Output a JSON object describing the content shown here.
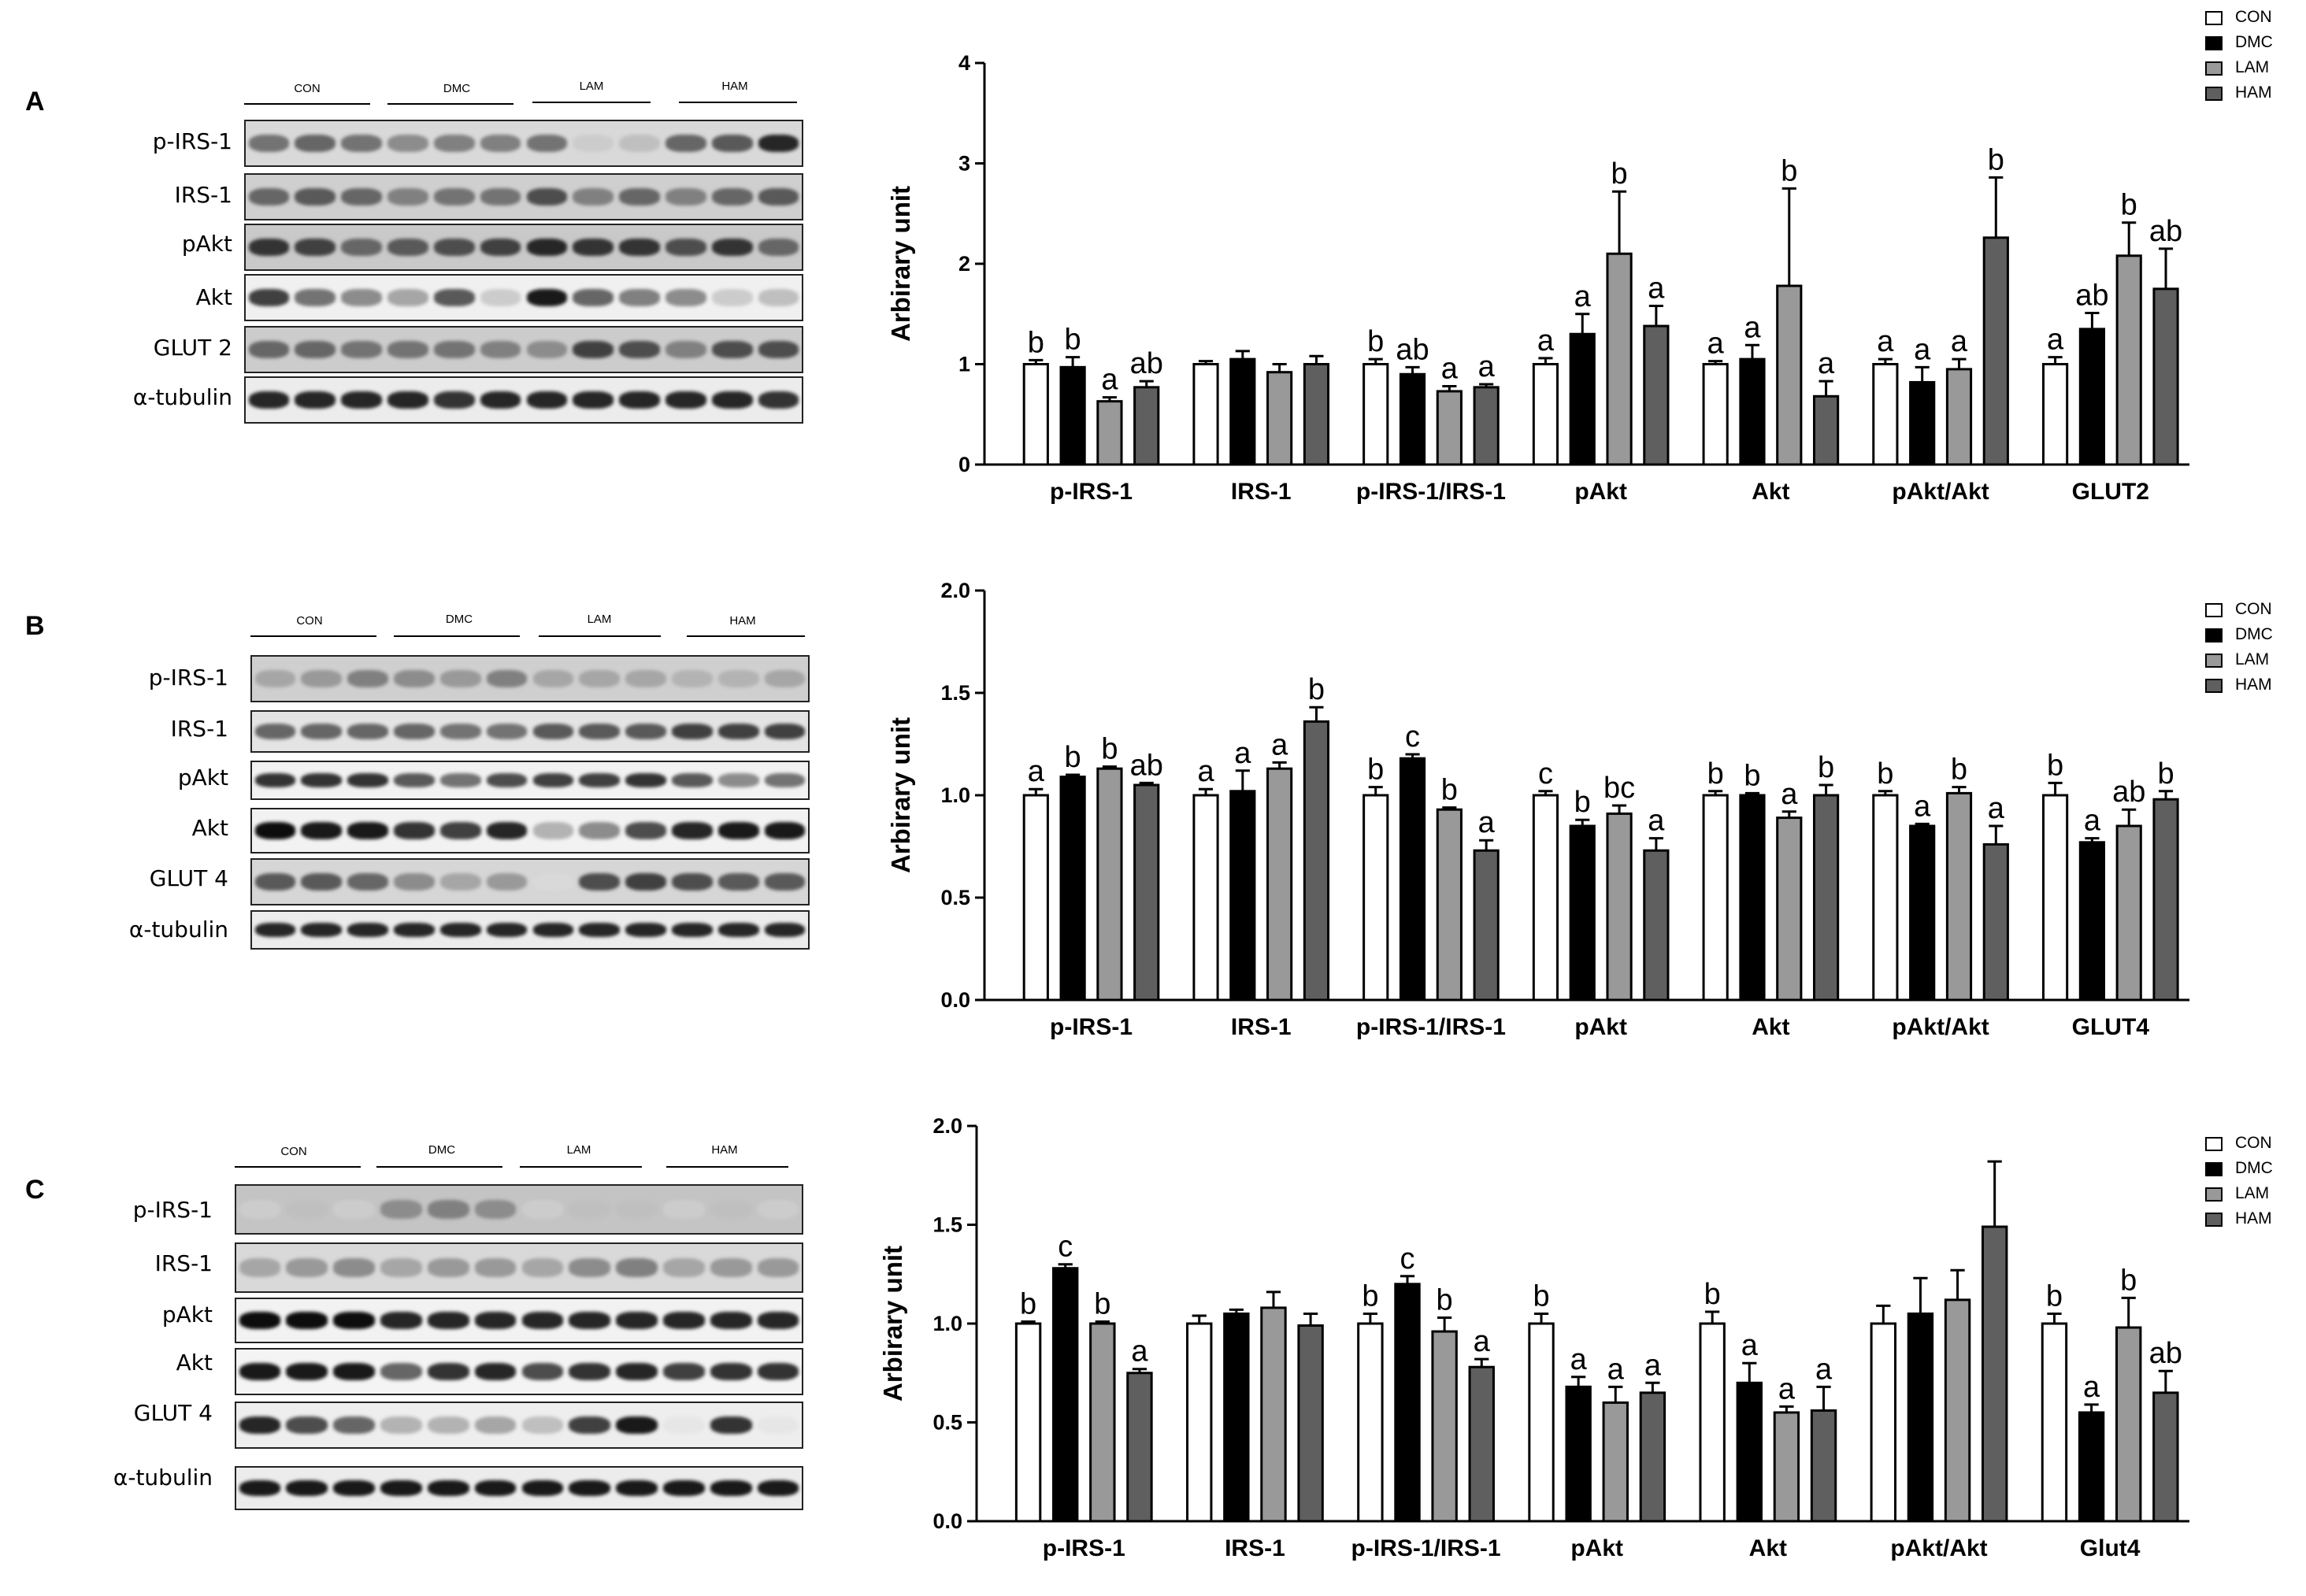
{
  "figure": {
    "panels": [
      {
        "letter": "A",
        "groups": [
          "CON",
          "DMC",
          "LAM",
          "HAM"
        ],
        "bands": [
          "p-IRS-1",
          "IRS-1",
          "pAkt",
          "Akt",
          "GLUT 2",
          "α-tubulin"
        ],
        "legend": [
          "CON",
          "DMC",
          "LAM",
          "HAM"
        ]
      },
      {
        "letter": "B",
        "groups": [
          "CON",
          "DMC",
          "LAM",
          "HAM"
        ],
        "bands": [
          "p-IRS-1",
          "IRS-1",
          "pAkt",
          "Akt",
          "GLUT 4",
          "α-tubulin"
        ],
        "legend": [
          "CON",
          "DMC",
          "LAM",
          "HAM"
        ]
      },
      {
        "letter": "C",
        "groups": [
          "CON",
          "DMC",
          "LAM",
          "HAM"
        ],
        "bands": [
          "p-IRS-1",
          "IRS-1",
          "pAkt",
          "Akt",
          "GLUT 4",
          "α-tubulin"
        ],
        "legend": [
          "CON",
          "DMC",
          "LAM",
          "HAM"
        ]
      }
    ]
  },
  "colors": {
    "CON": "#ffffff",
    "DMC": "#000000",
    "LAM": "#999999",
    "HAM": "#5f5f5f"
  },
  "chart_data": [
    {
      "type": "bar",
      "panel": "A",
      "ylabel": "Arbirary unit",
      "ylim": [
        0,
        4
      ],
      "yticks": [
        "0",
        "1",
        "2",
        "3",
        "4"
      ],
      "tick_values": [
        0,
        1,
        2,
        3,
        4
      ],
      "categories": [
        "p-IRS-1",
        "IRS-1",
        "p-IRS-1/IRS-1",
        "pAkt",
        "Akt",
        "pAkt/Akt",
        "GLUT2"
      ],
      "series": [
        {
          "name": "CON",
          "values": [
            1.0,
            1.0,
            1.0,
            1.0,
            1.0,
            1.0,
            1.0
          ],
          "errors": [
            0.04,
            0.03,
            0.05,
            0.06,
            0.03,
            0.05,
            0.07
          ],
          "labels": [
            "b",
            "",
            "b",
            "a",
            "a",
            "a",
            "a"
          ]
        },
        {
          "name": "DMC",
          "values": [
            0.97,
            1.05,
            0.9,
            1.3,
            1.05,
            0.82,
            1.35
          ],
          "errors": [
            0.1,
            0.08,
            0.07,
            0.2,
            0.14,
            0.15,
            0.16
          ],
          "labels": [
            "b",
            "",
            "ab",
            "a",
            "a",
            "a",
            "ab"
          ]
        },
        {
          "name": "LAM",
          "values": [
            0.63,
            0.92,
            0.73,
            2.1,
            1.78,
            0.95,
            2.08
          ],
          "errors": [
            0.04,
            0.08,
            0.05,
            0.62,
            0.97,
            0.1,
            0.33
          ],
          "labels": [
            "a",
            "",
            "a",
            "b",
            "b",
            "a",
            "b"
          ]
        },
        {
          "name": "HAM",
          "values": [
            0.77,
            1.0,
            0.77,
            1.38,
            0.68,
            2.26,
            1.75
          ],
          "errors": [
            0.06,
            0.08,
            0.03,
            0.2,
            0.15,
            0.6,
            0.4
          ],
          "labels": [
            "ab",
            "",
            "a",
            "a",
            "a",
            "b",
            "ab"
          ]
        }
      ]
    },
    {
      "type": "bar",
      "panel": "B",
      "ylabel": "Arbirary unit",
      "ylim": [
        0,
        2
      ],
      "yticks": [
        "0.0",
        "0.5",
        "1.0",
        "1.5",
        "2.0"
      ],
      "tick_values": [
        0,
        0.5,
        1,
        1.5,
        2
      ],
      "categories": [
        "p-IRS-1",
        "IRS-1",
        "p-IRS-1/IRS-1",
        "pAkt",
        "Akt",
        "pAkt/Akt",
        "GLUT4"
      ],
      "series": [
        {
          "name": "CON",
          "values": [
            1.0,
            1.0,
            1.0,
            1.0,
            1.0,
            1.0,
            1.0
          ],
          "errors": [
            0.03,
            0.03,
            0.04,
            0.02,
            0.02,
            0.02,
            0.06
          ],
          "labels": [
            "a",
            "a",
            "b",
            "c",
            "b",
            "b",
            "b"
          ]
        },
        {
          "name": "DMC",
          "values": [
            1.09,
            1.02,
            1.18,
            0.85,
            1.0,
            0.85,
            0.77
          ],
          "errors": [
            0.01,
            0.1,
            0.02,
            0.03,
            0.01,
            0.01,
            0.02
          ],
          "labels": [
            "b",
            "a",
            "c",
            "b",
            "b",
            "a",
            "a"
          ]
        },
        {
          "name": "LAM",
          "values": [
            1.13,
            1.13,
            0.93,
            0.91,
            0.89,
            1.01,
            0.85
          ],
          "errors": [
            0.01,
            0.03,
            0.01,
            0.04,
            0.03,
            0.03,
            0.08
          ],
          "labels": [
            "b",
            "a",
            "b",
            "bc",
            "a",
            "b",
            "ab"
          ]
        },
        {
          "name": "HAM",
          "values": [
            1.05,
            1.36,
            0.73,
            0.73,
            1.0,
            0.76,
            0.98
          ],
          "errors": [
            0.01,
            0.07,
            0.05,
            0.06,
            0.05,
            0.09,
            0.04
          ],
          "labels": [
            "ab",
            "b",
            "a",
            "a",
            "b",
            "a",
            "b"
          ]
        }
      ]
    },
    {
      "type": "bar",
      "panel": "C",
      "ylabel": "Arbirary unit",
      "ylim": [
        0,
        2
      ],
      "yticks": [
        "0.0",
        "0.5",
        "1.0",
        "1.5",
        "2.0"
      ],
      "tick_values": [
        0,
        0.5,
        1,
        1.5,
        2
      ],
      "categories": [
        "p-IRS-1",
        "IRS-1",
        "p-IRS-1/IRS-1",
        "pAkt",
        "Akt",
        "pAkt/Akt",
        "Glut4"
      ],
      "series": [
        {
          "name": "CON",
          "values": [
            1.0,
            1.0,
            1.0,
            1.0,
            1.0,
            1.0,
            1.0
          ],
          "errors": [
            0.01,
            0.04,
            0.05,
            0.05,
            0.06,
            0.09,
            0.05
          ],
          "labels": [
            "b",
            "",
            "b",
            "b",
            "b",
            "",
            "b"
          ]
        },
        {
          "name": "DMC",
          "values": [
            1.28,
            1.05,
            1.2,
            0.68,
            0.7,
            1.05,
            0.55
          ],
          "errors": [
            0.02,
            0.02,
            0.04,
            0.05,
            0.1,
            0.18,
            0.04
          ],
          "labels": [
            "c",
            "",
            "c",
            "a",
            "a",
            "",
            "a"
          ]
        },
        {
          "name": "LAM",
          "values": [
            1.0,
            1.08,
            0.96,
            0.6,
            0.55,
            1.12,
            0.98
          ],
          "errors": [
            0.01,
            0.08,
            0.07,
            0.08,
            0.03,
            0.15,
            0.15
          ],
          "labels": [
            "b",
            "",
            "b",
            "a",
            "a",
            "",
            "b"
          ]
        },
        {
          "name": "HAM",
          "values": [
            0.75,
            0.99,
            0.78,
            0.65,
            0.56,
            1.49,
            0.65
          ],
          "errors": [
            0.02,
            0.06,
            0.04,
            0.05,
            0.12,
            0.33,
            0.11
          ],
          "labels": [
            "a",
            "",
            "a",
            "a",
            "a",
            "",
            "ab"
          ]
        }
      ]
    }
  ]
}
